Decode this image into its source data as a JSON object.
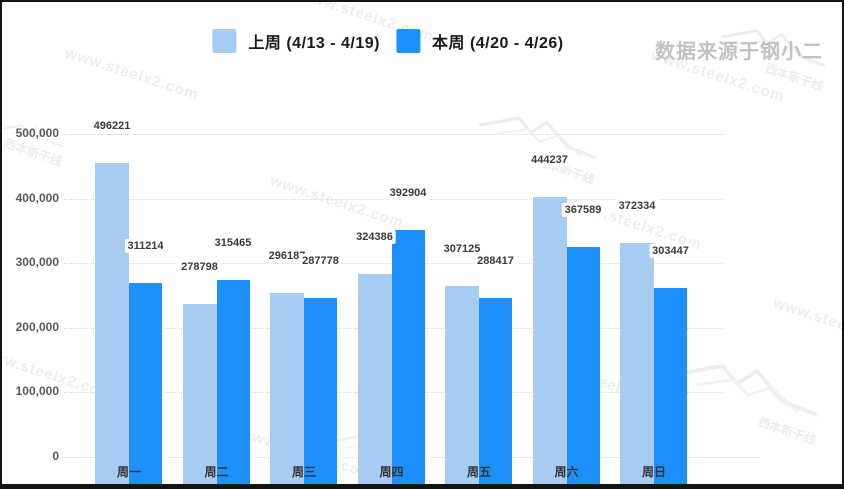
{
  "header": {
    "source_label": "数据来源于钢小二"
  },
  "legend": [
    {
      "label": "上周 (4/13 - 4/19)",
      "color": "#a6cdf1"
    },
    {
      "label": "本周 (4/20 - 4/26)",
      "color": "#1e90fd"
    }
  ],
  "watermark": {
    "url_text": "www.steelx2.com",
    "brand_text": "西本新干线"
  },
  "chart_data": {
    "type": "bar",
    "categories": [
      "周一",
      "周二",
      "周三",
      "周四",
      "周五",
      "周六",
      "周日"
    ],
    "series": [
      {
        "name": "上周 (4/13 - 4/19)",
        "color": "#a6cdf1",
        "values": [
          496221,
          278798,
          296187,
          324386,
          307125,
          444237,
          372334
        ]
      },
      {
        "name": "本周 (4/20 - 4/26)",
        "color": "#1e90fd",
        "values": [
          311214,
          315465,
          287778,
          392904,
          288417,
          367589,
          303447
        ]
      }
    ],
    "title": "",
    "xlabel": "",
    "ylabel": "",
    "ylim": [
      0,
      500000
    ],
    "yticks": [
      0,
      100000,
      200000,
      300000,
      400000,
      500000
    ],
    "ytick_labels": [
      "0",
      "100,000",
      "200,000",
      "300,000",
      "400,000",
      "500,000"
    ],
    "grid": "dotted-horizontal",
    "legend_position": "top-center",
    "value_labels": "above-bars"
  }
}
